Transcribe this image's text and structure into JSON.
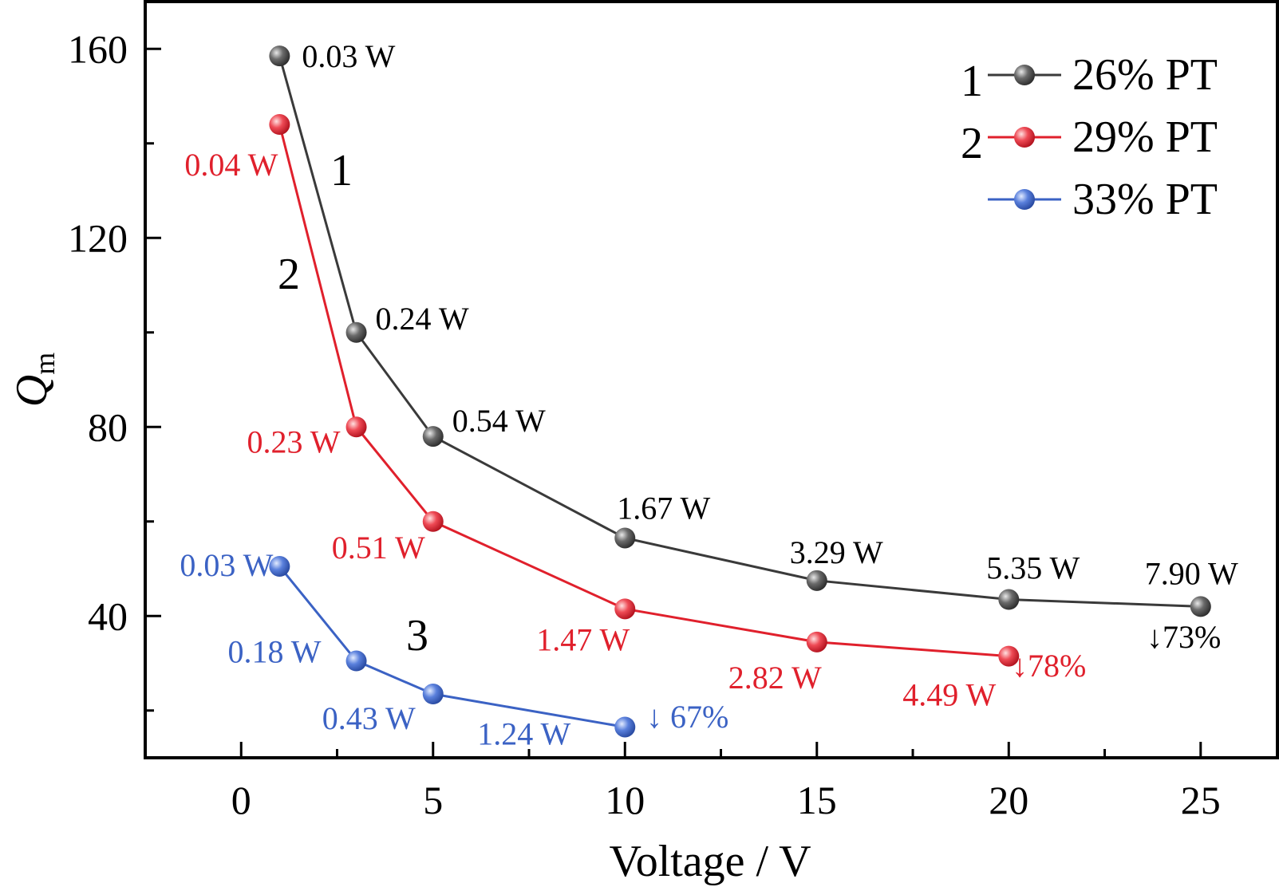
{
  "chart_data": {
    "type": "line",
    "xlabel": "Voltage / V",
    "ylabel_main": "Q",
    "ylabel_sub": "m",
    "xlim": [
      -2.5,
      27
    ],
    "ylim": [
      10,
      170
    ],
    "x_ticks": [
      0,
      5,
      10,
      15,
      20,
      25
    ],
    "x_tick_labels": [
      "0",
      "5",
      "10",
      "15",
      "20",
      "25"
    ],
    "y_ticks": [
      40,
      80,
      120,
      160
    ],
    "y_tick_labels": [
      "40",
      "80",
      "120",
      "160"
    ],
    "legend_position": "top-right",
    "series": [
      {
        "name": "26% PT",
        "legend_number": "1",
        "curve_label": "1",
        "color": "#3a3a3a",
        "x": [
          1,
          3,
          5,
          10,
          15,
          20,
          25
        ],
        "y": [
          158.5,
          100,
          78,
          56.5,
          47.5,
          43.5,
          42
        ],
        "point_labels": [
          "0.03 W",
          "0.24 W",
          "0.54 W",
          "1.67 W",
          "3.29 W",
          "5.35 W",
          "7.90 W"
        ],
        "reduction_label": "↓73%"
      },
      {
        "name": "29% PT",
        "legend_number": "2",
        "curve_label": "2",
        "color": "#e0202c",
        "x": [
          1,
          3,
          5,
          10,
          15,
          20
        ],
        "y": [
          144,
          80,
          60,
          41.5,
          34.5,
          31.5
        ],
        "point_labels": [
          "0.04 W",
          "0.23 W",
          "0.51 W",
          "1.47 W",
          "2.82 W",
          "4.49 W"
        ],
        "reduction_label": "↓78%"
      },
      {
        "name": "33% PT",
        "legend_number": "",
        "curve_label": "3",
        "color": "#3b62c4",
        "x": [
          1,
          3,
          5,
          10
        ],
        "y": [
          50.5,
          30.5,
          23.5,
          16.5
        ],
        "point_labels": [
          "0.03 W",
          "0.18 W",
          "0.43 W",
          "1.24 W"
        ],
        "reduction_label": "↓ 67%"
      }
    ]
  }
}
